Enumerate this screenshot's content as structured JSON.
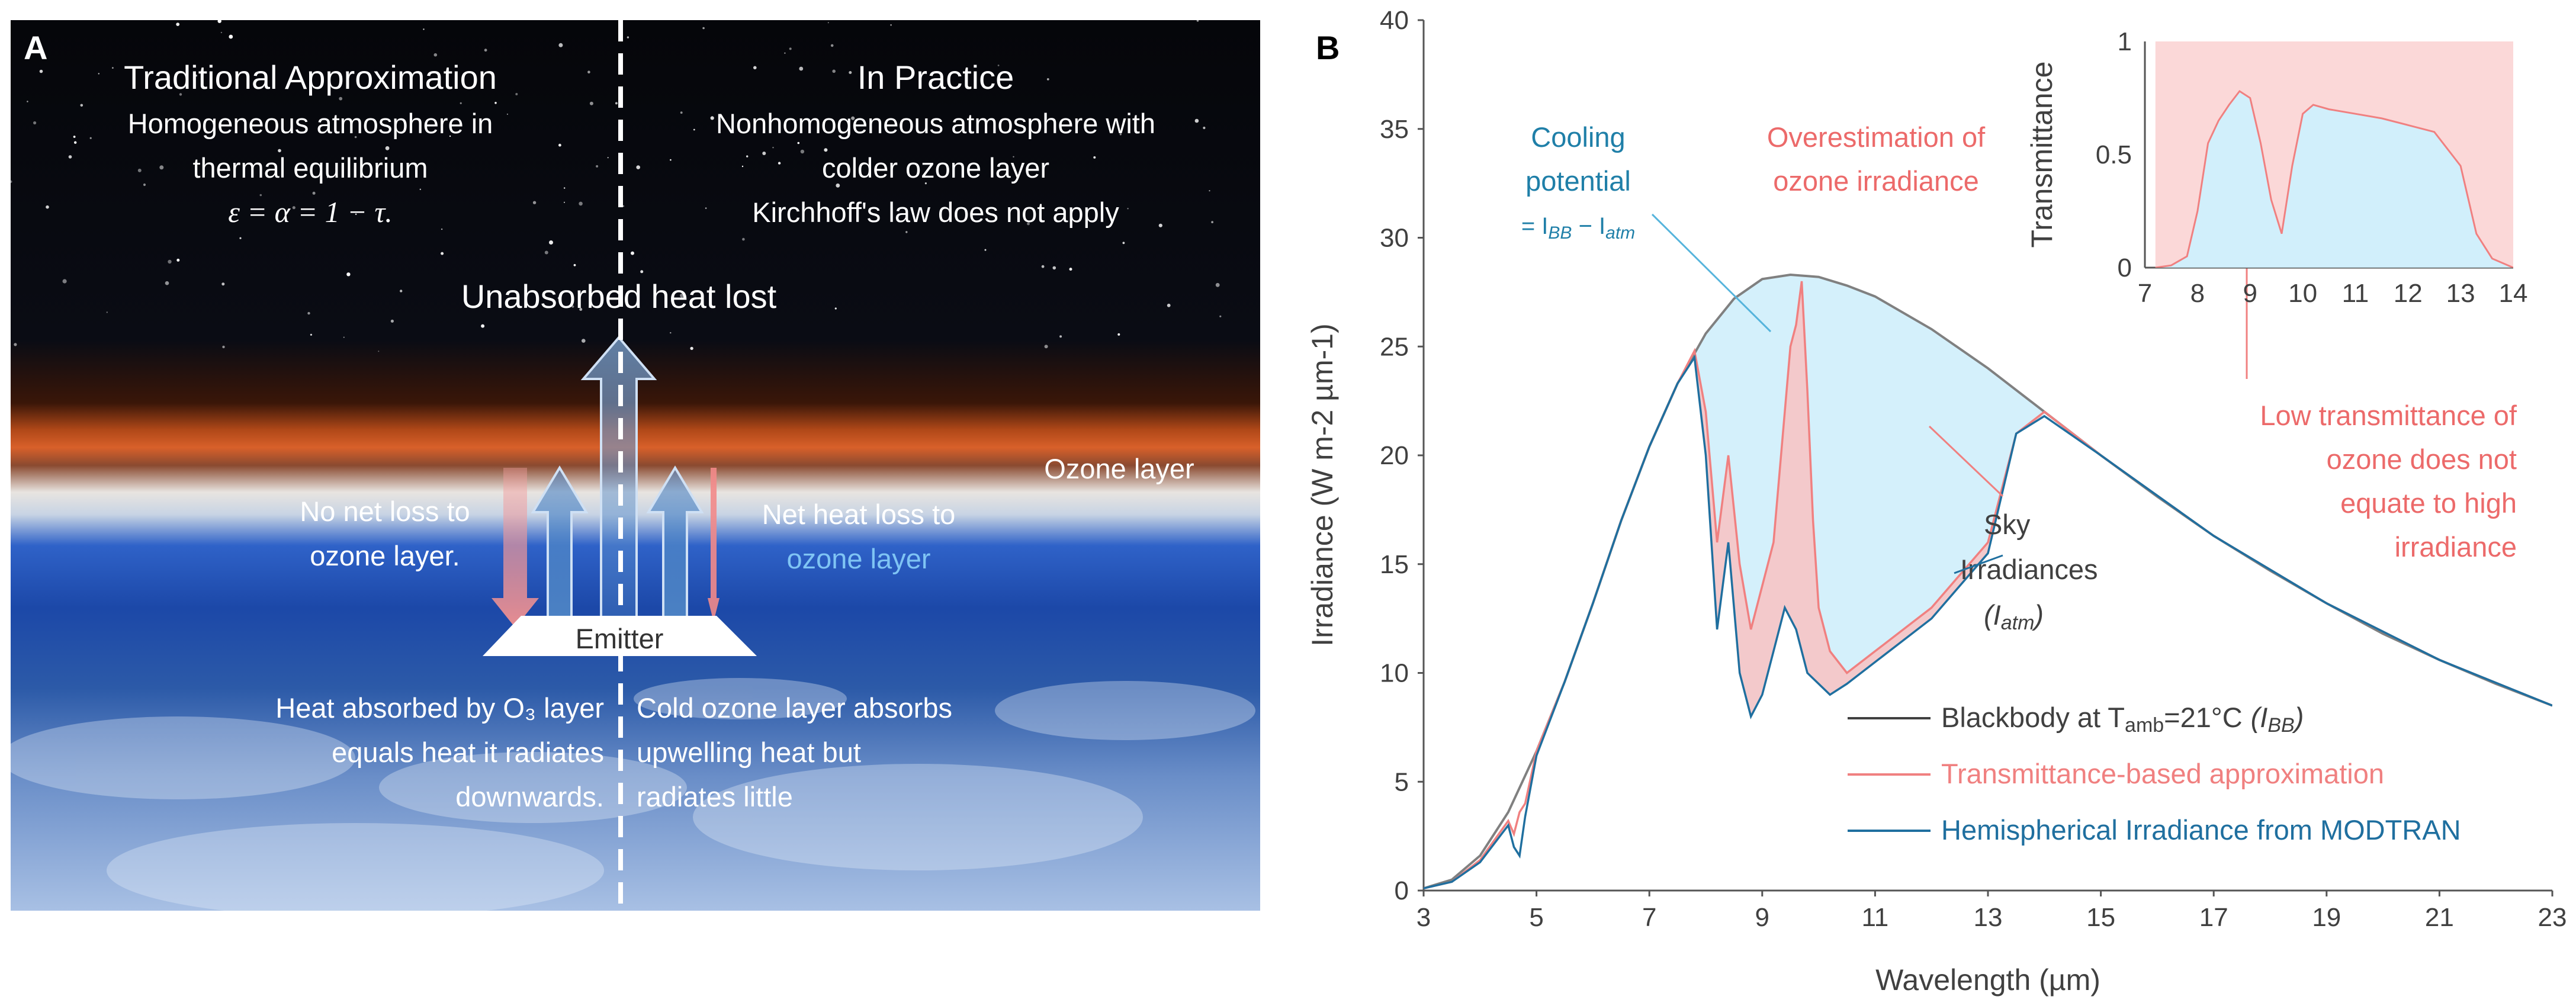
{
  "panel_a": {
    "label": "A",
    "left_title": "Traditional Approximation",
    "left_sub1": "Homogeneous atmosphere in",
    "left_sub2": "thermal equilibrium",
    "left_eq": "ε = α = 1 − τ.",
    "right_title": "In Practice",
    "right_sub1": "Nonhomogeneous atmosphere with",
    "right_sub2": "colder ozone layer",
    "right_sub3": "Kirchhoff's law does not apply",
    "unabsorbed": "Unabsorbed heat lost",
    "ozone_layer": "Ozone layer",
    "no_net_1": "No net loss to",
    "no_net_2": "ozone layer.",
    "net_heat_1": "Net heat loss to",
    "net_heat_2": "ozone layer",
    "emitter": "Emitter",
    "heat_abs_1": "Heat absorbed by O₃ layer",
    "heat_abs_2": "equals heat it radiates",
    "heat_abs_3": "downwards.",
    "cold_1": "Cold ozone layer absorbs",
    "cold_2": "upwelling heat but",
    "cold_3": "radiates little"
  },
  "panel_b": {
    "label": "B",
    "cooling_1": "Cooling",
    "cooling_2": "potential",
    "cooling_3": "= I",
    "cooling_3_sub1": "BB",
    "cooling_3_mid": " − I",
    "cooling_3_sub2": "atm",
    "over_1": "Overestimation of",
    "over_2": "ozone irradiance",
    "sky_1": "Sky",
    "sky_2": "Irradiances",
    "sky_3": "(I",
    "sky_3_sub": "atm",
    "sky_3_end": ")",
    "low_1": "Low transmittance of",
    "low_2": "ozone does not",
    "low_3": "equate to high",
    "low_4": "irradiance",
    "legend_bb": "Blackbody at T",
    "legend_bb_sub": "amb",
    "legend_bb_end": "=21°C",
    "legend_bb_paren": "(I",
    "legend_bb_paren_sub": "BB",
    "legend_bb_paren_end": ")",
    "legend_trans": "Transmittance-based approximation",
    "legend_modtran": "Hemispherical Irradiance from MODTRAN"
  },
  "chart_data": [
    {
      "type": "line",
      "xlabel": "Wavelength (µm)",
      "ylabel": "Irradiance (W m-2 µm-1)",
      "xlim": [
        3,
        23
      ],
      "ylim": [
        0,
        40
      ],
      "x_ticks": [
        "3",
        "5",
        "7",
        "9",
        "11",
        "13",
        "15",
        "17",
        "19",
        "21",
        "23"
      ],
      "y_ticks": [
        "0",
        "5",
        "10",
        "15",
        "20",
        "25",
        "30",
        "35",
        "40"
      ],
      "series": [
        {
          "name": "Blackbody at Tamb=21°C (IBB)",
          "color": "#808080",
          "x": [
            3,
            3.5,
            4,
            4.5,
            5,
            5.5,
            6,
            6.5,
            7,
            7.5,
            8,
            8.5,
            9,
            9.5,
            10,
            10.5,
            11,
            12,
            13,
            14,
            15,
            16,
            17,
            18,
            19,
            20,
            21,
            22,
            23
          ],
          "y": [
            0.1,
            0.5,
            1.6,
            3.6,
            6.4,
            9.6,
            13.2,
            17.0,
            20.4,
            23.3,
            25.6,
            27.2,
            28.1,
            28.3,
            28.2,
            27.8,
            27.3,
            25.8,
            24.0,
            22.0,
            20.0,
            18.1,
            16.3,
            14.7,
            13.2,
            11.8,
            10.6,
            9.5,
            8.5
          ]
        },
        {
          "name": "Transmittance-based approximation",
          "color": "#f08080",
          "x": [
            3,
            3.5,
            4,
            4.5,
            4.6,
            4.7,
            4.8,
            5,
            5.5,
            6,
            6.5,
            7,
            7.5,
            7.8,
            8,
            8.2,
            8.4,
            8.6,
            8.8,
            9.0,
            9.2,
            9.4,
            9.5,
            9.6,
            9.7,
            9.8,
            9.9,
            10.0,
            10.2,
            10.5,
            11,
            11.5,
            12,
            12.5,
            13,
            13.5,
            14,
            15,
            17,
            19,
            21,
            23
          ],
          "y": [
            0.1,
            0.4,
            1.4,
            3.2,
            2.6,
            3.6,
            4.0,
            6.4,
            9.6,
            13.2,
            17.0,
            20.4,
            23.3,
            24.8,
            22.0,
            16.0,
            20.0,
            15.0,
            12.0,
            14.0,
            16.0,
            22.0,
            25.0,
            26.0,
            28.0,
            23.0,
            17.0,
            13.0,
            11.0,
            10.0,
            11.0,
            12.0,
            13.0,
            14.5,
            16.0,
            21.0,
            22.0,
            20.0,
            16.3,
            13.2,
            10.6,
            8.5
          ]
        },
        {
          "name": "Hemispherical Irradiance from MODTRAN",
          "color": "#1f6f9f",
          "x": [
            3,
            3.5,
            4,
            4.5,
            4.6,
            4.7,
            4.8,
            5,
            5.5,
            6,
            6.5,
            7,
            7.5,
            7.8,
            8,
            8.2,
            8.4,
            8.6,
            8.8,
            9.0,
            9.2,
            9.4,
            9.6,
            9.8,
            10.0,
            10.2,
            10.5,
            11,
            11.5,
            12,
            12.5,
            13,
            13.5,
            14,
            15,
            17,
            19,
            21,
            23
          ],
          "y": [
            0.1,
            0.4,
            1.3,
            3.0,
            2.0,
            1.6,
            3.4,
            6.2,
            9.6,
            13.2,
            17.0,
            20.4,
            23.3,
            24.5,
            20.0,
            12.0,
            16.0,
            10.0,
            8.0,
            9.0,
            11.0,
            13.0,
            12.0,
            10.0,
            9.5,
            9.0,
            9.5,
            10.5,
            11.5,
            12.5,
            14.0,
            15.5,
            21.0,
            21.8,
            20.0,
            16.3,
            13.2,
            10.6,
            8.5
          ]
        }
      ]
    },
    {
      "type": "area",
      "ylabel": "Transmittance",
      "xlim": [
        7,
        14
      ],
      "ylim": [
        0,
        1
      ],
      "x_ticks": [
        "7",
        "8",
        "9",
        "10",
        "11",
        "12",
        "13",
        "14"
      ],
      "y_ticks": [
        "0",
        "0.5",
        "1"
      ],
      "series": [
        {
          "name": "Transmittance",
          "color": "#f08080",
          "x": [
            7.2,
            7.5,
            7.8,
            8.0,
            8.2,
            8.4,
            8.6,
            8.8,
            9.0,
            9.2,
            9.4,
            9.6,
            9.8,
            10.0,
            10.2,
            10.5,
            11,
            11.5,
            12,
            12.5,
            13,
            13.3,
            13.6,
            14
          ],
          "y": [
            0,
            0.01,
            0.05,
            0.25,
            0.55,
            0.65,
            0.72,
            0.78,
            0.75,
            0.55,
            0.3,
            0.15,
            0.45,
            0.68,
            0.72,
            0.7,
            0.68,
            0.66,
            0.63,
            0.6,
            0.45,
            0.15,
            0.04,
            0.0
          ]
        }
      ]
    }
  ]
}
